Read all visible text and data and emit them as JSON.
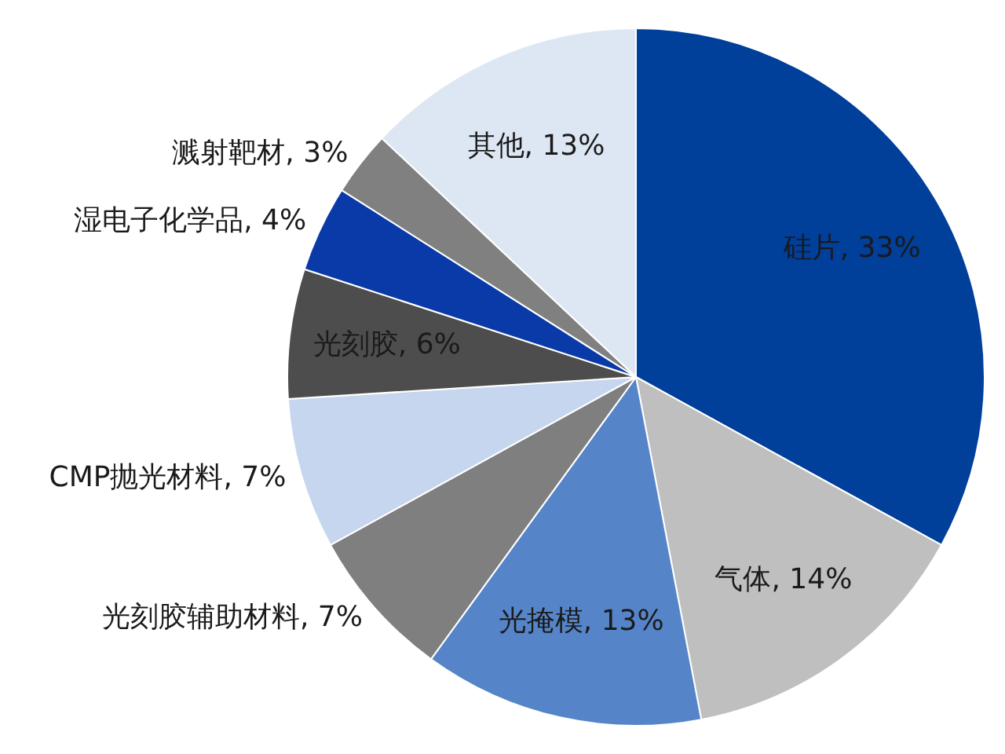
{
  "chart_data": {
    "type": "pie",
    "categories": [
      "硅片",
      "气体",
      "光掩模",
      "光刻胶辅助材料",
      "CMP抛光材料",
      "光刻胶",
      "湿电子化学品",
      "溅射靶材",
      "其他"
    ],
    "values": [
      33,
      14,
      13,
      7,
      7,
      6,
      4,
      3,
      13
    ],
    "value_labels": [
      "33%",
      "14%",
      "13%",
      "7%",
      "7%",
      "6%",
      "4%",
      "3%",
      "13%"
    ],
    "colors": [
      "#003f9a",
      "#bfbfbf",
      "#5585c8",
      "#7f7f7f",
      "#c6d6ee",
      "#4d4d4d",
      "#0a3aa8",
      "#808080",
      "#dde7f4"
    ]
  }
}
